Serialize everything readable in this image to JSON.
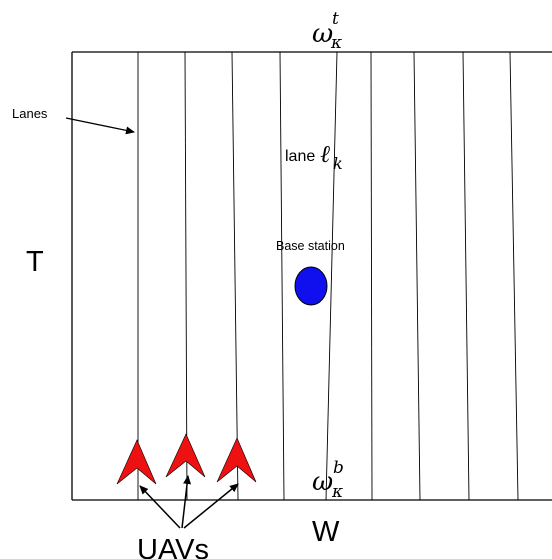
{
  "labels": {
    "top_symbol": "ω",
    "top_sup": "t",
    "top_sub": "κ",
    "bottom_symbol": "ω",
    "bottom_sup": "b",
    "bottom_sub": "κ",
    "lanes": "Lanes",
    "lane_prefix": "lane",
    "lane_symbol": "ℓ",
    "lane_sub": "k",
    "base_station": "Base station",
    "height": "T",
    "width": "W",
    "uavs": "UAVs"
  },
  "colors": {
    "base_station": "#1010ee",
    "uav": "#ee1111",
    "line": "#000000"
  },
  "uav_count": 3,
  "lane_count": 9
}
